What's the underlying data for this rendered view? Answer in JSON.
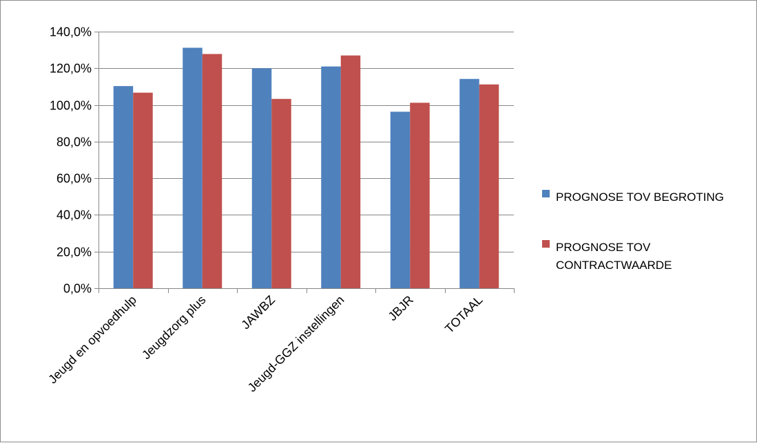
{
  "chart_data": {
    "type": "bar",
    "categories": [
      "Jeugd en opvoedhulp",
      "Jeugdzorg plus",
      "JAWBZ",
      "Jeugd-GGZ instellingen",
      "JBJR",
      "TOTAAL"
    ],
    "series": [
      {
        "name": "PROGNOSE TOV BEGROTING",
        "name_lines": [
          "PROGNOSE TOV BEGROTING"
        ],
        "color": "#4f81bd",
        "values": [
          110.3,
          131.2,
          120.0,
          121.0,
          96.3,
          114.2
        ]
      },
      {
        "name": "PROGNOSE  TOV CONTRACTWAARDE",
        "name_lines": [
          "PROGNOSE  TOV",
          "CONTRACTWAARDE"
        ],
        "color": "#c0504d",
        "values": [
          106.7,
          127.8,
          103.3,
          127.0,
          101.2,
          111.2
        ]
      }
    ],
    "ylim": [
      0,
      140
    ],
    "yticks": [
      0,
      20,
      40,
      60,
      80,
      100,
      120,
      140
    ],
    "ytick_labels": [
      "0,0%",
      "20,0%",
      "40,0%",
      "60,0%",
      "80,0%",
      "100,0%",
      "120,0%",
      "140,0%"
    ],
    "grid": true,
    "legend_position": "right",
    "gridline_color": "#868686"
  }
}
